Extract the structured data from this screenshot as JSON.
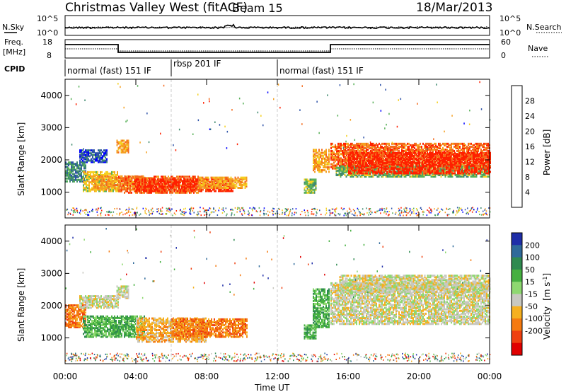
{
  "header": {
    "station": "Christmas Valley West (fitACF)",
    "beam": "Beam 15",
    "date": "18/Mar/2013"
  },
  "noise_panel": {
    "left_label": "N.Sky",
    "left_ticks": [
      "10^5",
      "10^0"
    ],
    "right_label": "N.Search",
    "right_ticks": [
      "10^5",
      "10^0"
    ]
  },
  "freq_panel": {
    "left_label_1": "Freq.",
    "left_label_2": "[MHz]",
    "left_ticks": [
      "18",
      "8"
    ],
    "right_label": "Nave",
    "right_ticks": [
      "60",
      "0"
    ]
  },
  "cpid": {
    "label": "CPID",
    "segments": [
      {
        "text": "normal (fast) 151 IF",
        "start_ut": 0
      },
      {
        "text": "rbsp 201 IF",
        "start_ut": 6
      },
      {
        "text": "normal (fast) 151 IF",
        "start_ut": 12
      }
    ]
  },
  "x_axis": {
    "label": "Time UT",
    "ticks": [
      "00:00",
      "04:00",
      "08:00",
      "12:00",
      "16:00",
      "20:00",
      "00:00"
    ]
  },
  "power_colorbar": {
    "label": "Power [dB]",
    "ticks": [
      "28",
      "24",
      "20",
      "16",
      "12",
      "8",
      "4"
    ],
    "colors": [
      "#0000ff",
      "#2d52a8",
      "#3f8a6e",
      "#58b058",
      "#f5d020",
      "#f5a020",
      "#f46a1c",
      "#ff2000"
    ]
  },
  "velocity_colorbar": {
    "label_1": "Velocity",
    "label_2": "[m s",
    "label_sup": "-1",
    "label_3": "]",
    "ticks": [
      "200",
      "100",
      "50",
      "15",
      "-15",
      "-50",
      "-100",
      "-200"
    ],
    "colors": [
      "#1f2ea8",
      "#2f6a9a",
      "#2f8a50",
      "#46b040",
      "#8ed870",
      "#c8c8c0",
      "#f5b020",
      "#f57a10",
      "#ef4010",
      "#e00000"
    ]
  },
  "chart_data": [
    {
      "type": "heatmap",
      "name": "power",
      "ylabel": "Slant Range [km]",
      "xlim": [
        0,
        24
      ],
      "ylim": [
        200,
        4500
      ],
      "y_ticks": [
        1000,
        2000,
        3000,
        4000
      ],
      "x_ticks_hours": [
        0,
        4,
        8,
        12,
        16,
        20,
        24
      ],
      "regions": [
        {
          "t0": 0.0,
          "t1": 1.2,
          "r0": 1300,
          "r1": 1900,
          "level": 2
        },
        {
          "t0": 0.8,
          "t1": 2.4,
          "r0": 1900,
          "r1": 2300,
          "level": 1
        },
        {
          "t0": 1.0,
          "t1": 3.0,
          "r0": 1000,
          "r1": 1600,
          "level": 4
        },
        {
          "t0": 1.5,
          "t1": 4.5,
          "r0": 1050,
          "r1": 1500,
          "level": 5
        },
        {
          "t0": 3.0,
          "t1": 7.5,
          "r0": 950,
          "r1": 1450,
          "level": 6
        },
        {
          "t0": 4.0,
          "t1": 9.5,
          "r0": 1000,
          "r1": 1400,
          "level": 7
        },
        {
          "t0": 7.5,
          "t1": 10.3,
          "r0": 1100,
          "r1": 1450,
          "level": 5
        },
        {
          "t0": 2.9,
          "t1": 3.6,
          "r0": 2200,
          "r1": 2600,
          "level": 5
        },
        {
          "t0": 13.5,
          "t1": 14.2,
          "r0": 950,
          "r1": 1400,
          "level": 3
        },
        {
          "t0": 14.0,
          "t1": 14.9,
          "r0": 1600,
          "r1": 2300,
          "level": 5
        },
        {
          "t0": 15.0,
          "t1": 24.0,
          "r0": 1700,
          "r1": 2500,
          "level": 6
        },
        {
          "t0": 15.3,
          "t1": 24.0,
          "r0": 1450,
          "r1": 1800,
          "level": 3
        },
        {
          "t0": 16.0,
          "t1": 24.0,
          "r0": 1550,
          "r1": 2200,
          "level": 7
        }
      ]
    },
    {
      "type": "heatmap",
      "name": "velocity",
      "ylabel": "Slant Range [km]",
      "xlim": [
        0,
        24
      ],
      "ylim": [
        200,
        4500
      ],
      "y_ticks": [
        1000,
        2000,
        3000,
        4000
      ],
      "x_ticks_hours": [
        0,
        4,
        8,
        12,
        16,
        20,
        24
      ],
      "regions": [
        {
          "t0": 0.0,
          "t1": 1.2,
          "r0": 1300,
          "r1": 2000,
          "level": 7
        },
        {
          "t0": 0.8,
          "t1": 3.0,
          "r0": 1900,
          "r1": 2300,
          "level": 5
        },
        {
          "t0": 1.0,
          "t1": 4.5,
          "r0": 1000,
          "r1": 1650,
          "level": 3
        },
        {
          "t0": 4.0,
          "t1": 8.0,
          "r0": 850,
          "r1": 1600,
          "level": 6
        },
        {
          "t0": 6.0,
          "t1": 10.3,
          "r0": 1000,
          "r1": 1550,
          "level": 7
        },
        {
          "t0": 2.9,
          "t1": 3.6,
          "r0": 2200,
          "r1": 2600,
          "level": 5
        },
        {
          "t0": 13.5,
          "t1": 14.2,
          "r0": 950,
          "r1": 1400,
          "level": 3
        },
        {
          "t0": 14.0,
          "t1": 14.9,
          "r0": 1300,
          "r1": 2500,
          "level": 3
        },
        {
          "t0": 15.0,
          "t1": 24.0,
          "r0": 1400,
          "r1": 2700,
          "level": 5
        },
        {
          "t0": 15.5,
          "t1": 24.0,
          "r0": 2400,
          "r1": 2900,
          "level": 5
        }
      ]
    }
  ]
}
